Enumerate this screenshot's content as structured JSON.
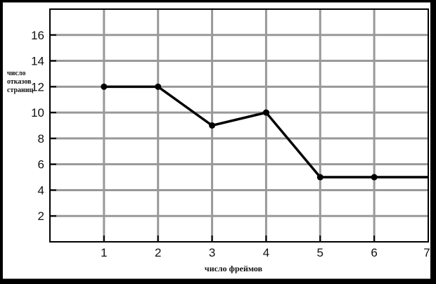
{
  "chart_data": {
    "type": "line",
    "title": "",
    "xlabel": "число фреймов",
    "ylabel_lines": [
      "число",
      "отказов",
      "страниц"
    ],
    "x": [
      1,
      2,
      3,
      4,
      5,
      6,
      7
    ],
    "y": [
      12,
      12,
      9,
      10,
      5,
      5,
      5
    ],
    "xlim": [
      0,
      7
    ],
    "ylim": [
      0,
      18
    ],
    "xticks": [
      1,
      2,
      3,
      4,
      5,
      6,
      7
    ],
    "yticks": [
      2,
      4,
      6,
      8,
      10,
      12,
      14,
      16
    ],
    "grid": true,
    "colors": {
      "line": "#000000",
      "grid": "#999999",
      "frame": "#000000"
    },
    "markers": [
      true,
      true,
      true,
      true,
      true,
      true,
      false
    ]
  }
}
